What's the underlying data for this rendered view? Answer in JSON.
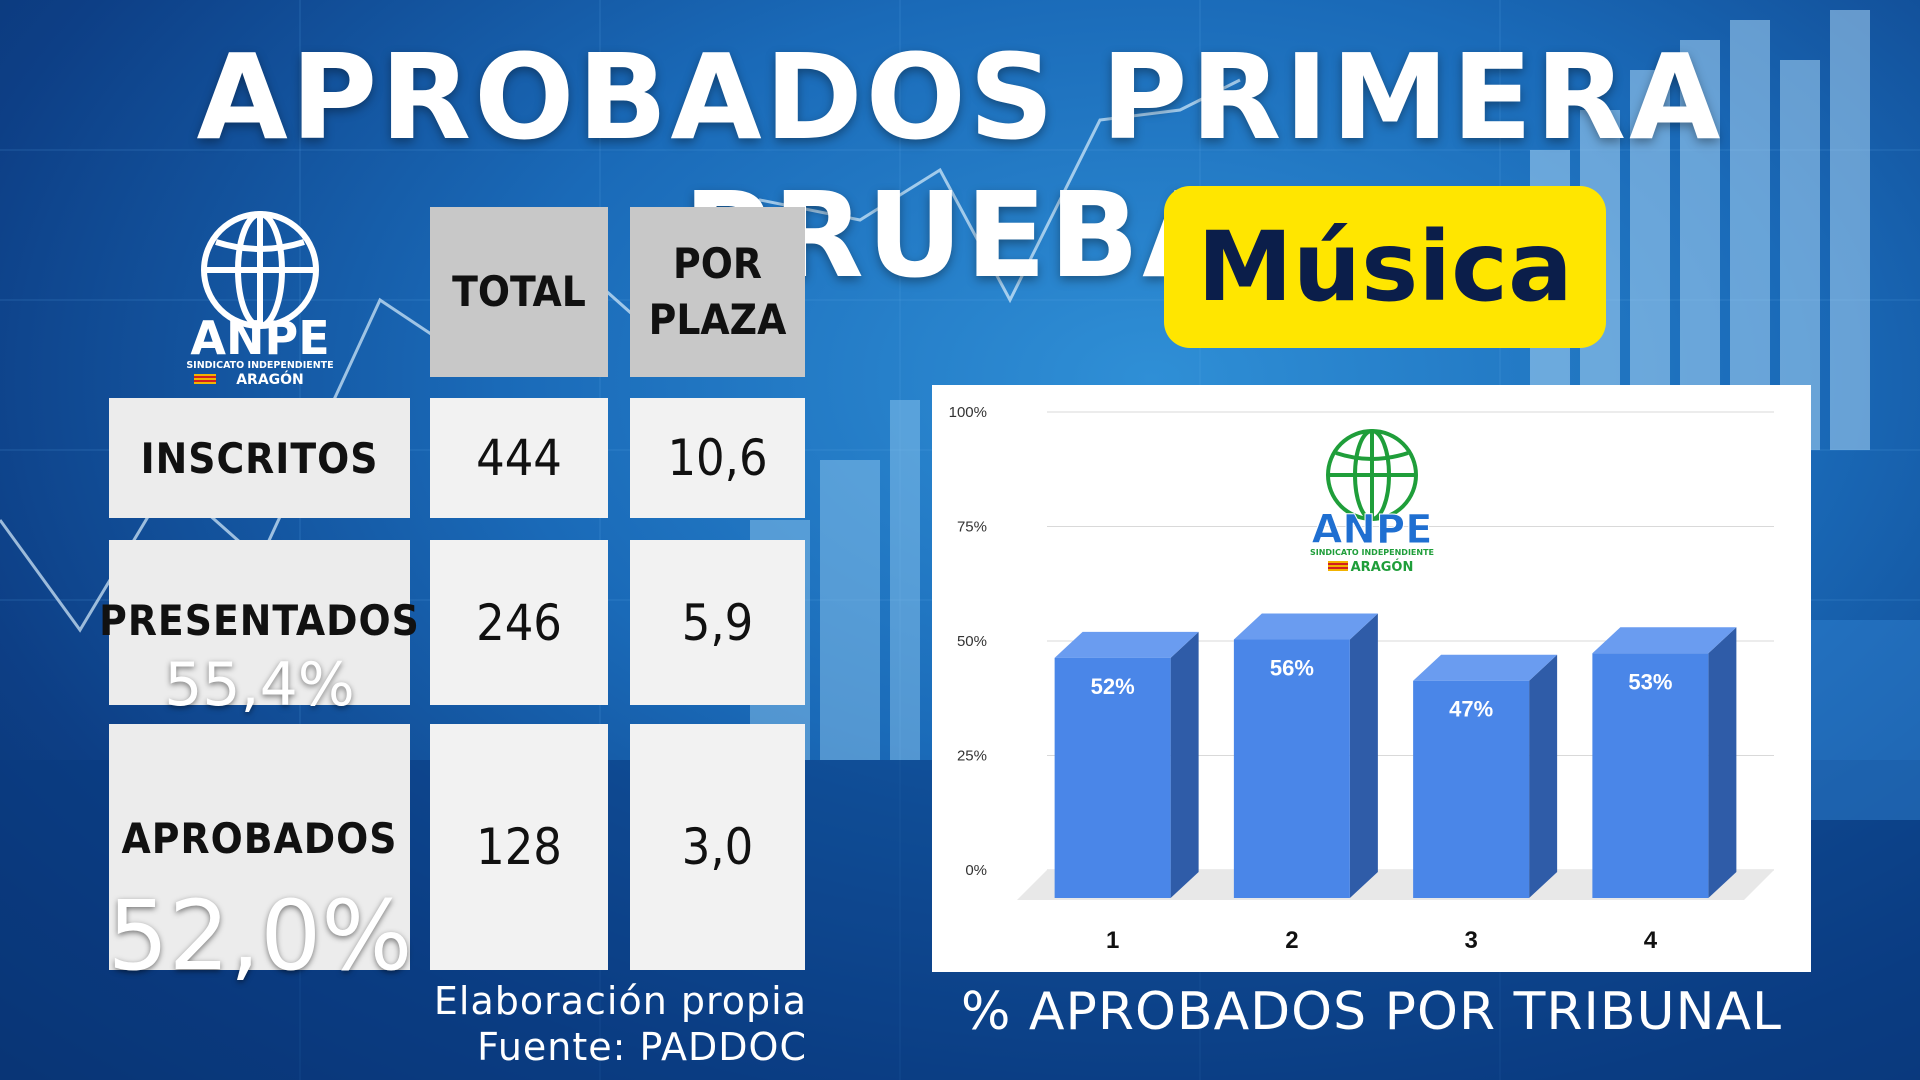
{
  "title": "APROBADOS PRIMERA PRUEBA",
  "subject": "Música",
  "logo": {
    "name": "ANPE",
    "line1": "SINDICATO INDEPENDIENTE",
    "line2": "ARAGÓN"
  },
  "table": {
    "col_total": "TOTAL",
    "col_plaza_1": "POR",
    "col_plaza_2": "PLAZA",
    "rows": [
      {
        "label": "INSCRITOS",
        "total": "444",
        "per_plaza": "10,6",
        "pct": ""
      },
      {
        "label": "PRESENTADOS",
        "total": "246",
        "per_plaza": "5,9",
        "pct": "55,4%"
      },
      {
        "label": "APROBADOS",
        "total": "128",
        "per_plaza": "3,0",
        "pct": "52,0%"
      }
    ]
  },
  "source": {
    "line1": "Elaboración propia",
    "line2": "Fuente: PADDOC"
  },
  "chart_caption": "% APROBADOS POR TRIBUNAL",
  "colors": {
    "yellow": "#ffe600",
    "bar_front": "#4a86e8",
    "bar_side": "#2f5ca8",
    "bar_top": "#6a9cf0",
    "logo_green": "#1f9e3a",
    "logo_blue": "#1f6fd1"
  },
  "chart_data": {
    "type": "bar",
    "categories": [
      "1",
      "2",
      "3",
      "4"
    ],
    "values": [
      52,
      56,
      47,
      53
    ],
    "data_labels": [
      "52%",
      "56%",
      "47%",
      "53%"
    ],
    "y_ticks": [
      "0%",
      "25%",
      "50%",
      "75%",
      "100%"
    ],
    "ylim": [
      0,
      100
    ],
    "grid": true,
    "three_d": true
  }
}
